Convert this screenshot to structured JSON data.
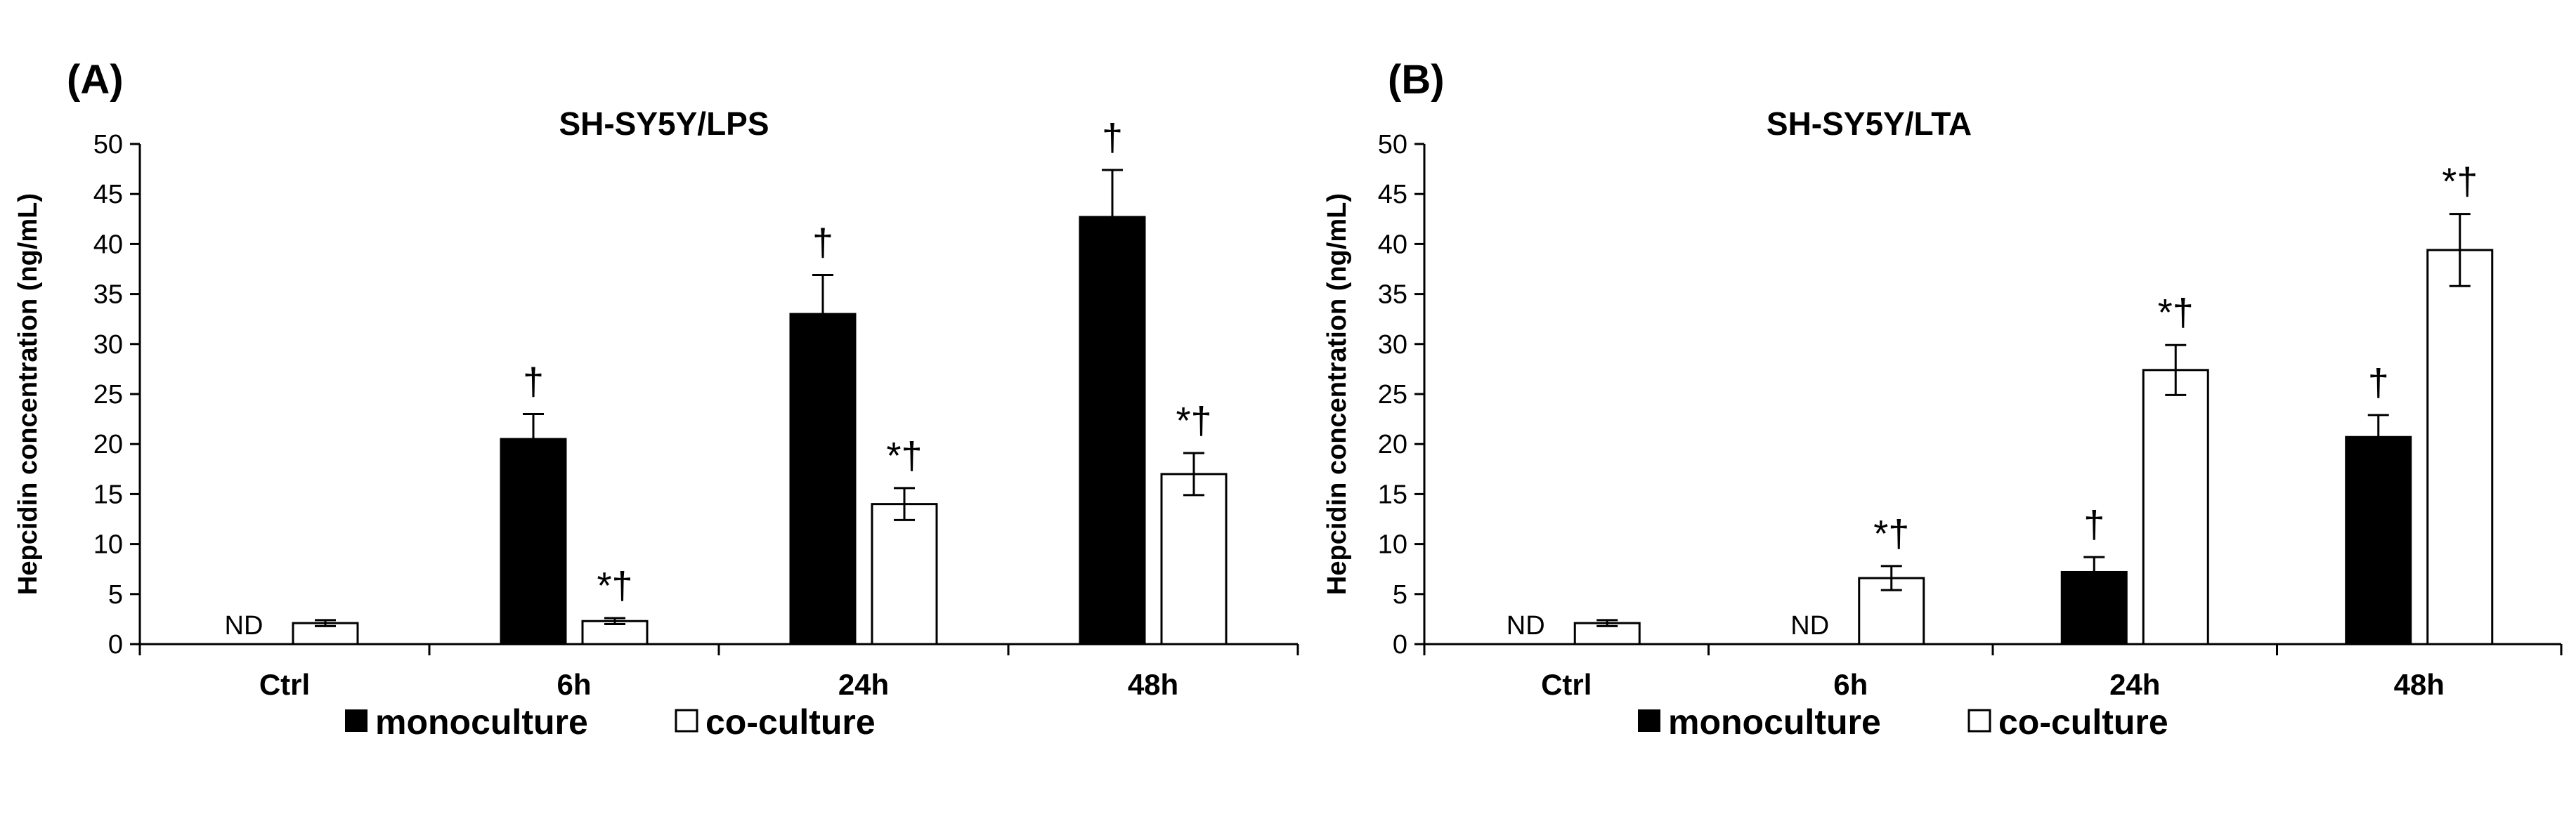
{
  "panels": [
    {
      "panel_label": "(A)",
      "legend": {
        "monoculture": "monoculture",
        "coculture": "co-culture"
      }
    },
    {
      "panel_label": "(B)",
      "legend": {
        "monoculture": "monoculture",
        "coculture": "co-culture"
      }
    }
  ],
  "chart_data": [
    {
      "type": "bar",
      "title": "SH-SY5Y/LPS",
      "ylabel": "Hepcidin concentration (ng/mL)",
      "xlabel": "",
      "ylim": [
        0,
        50
      ],
      "yticks": [
        0,
        5,
        10,
        15,
        20,
        25,
        30,
        35,
        40,
        45,
        50
      ],
      "categories": [
        "Ctrl",
        "6h",
        "24h",
        "48h"
      ],
      "legend_position": "bottom",
      "grid": false,
      "series": [
        {
          "name": "monoculture",
          "color": "#000000",
          "values": [
            0,
            20.5,
            33.0,
            42.7
          ],
          "errors": [
            0,
            2.5,
            3.9,
            4.7
          ],
          "annotations": [
            "ND",
            "†",
            "†",
            "†"
          ]
        },
        {
          "name": "co-culture",
          "color": "#ffffff",
          "values": [
            2.1,
            2.3,
            14.0,
            17.0
          ],
          "errors": [
            0.3,
            0.3,
            1.6,
            2.1
          ],
          "annotations": [
            "",
            "*†",
            "*†",
            "*†"
          ]
        }
      ]
    },
    {
      "type": "bar",
      "title": "SH-SY5Y/LTA",
      "ylabel": "Hepcidin concentration (ng/mL)",
      "xlabel": "",
      "ylim": [
        0,
        50
      ],
      "yticks": [
        0,
        5,
        10,
        15,
        20,
        25,
        30,
        35,
        40,
        45,
        50
      ],
      "categories": [
        "Ctrl",
        "6h",
        "24h",
        "48h"
      ],
      "legend_position": "bottom",
      "grid": false,
      "series": [
        {
          "name": "monoculture",
          "color": "#000000",
          "values": [
            0,
            0,
            7.2,
            20.7
          ],
          "errors": [
            0,
            0,
            1.5,
            2.2
          ],
          "annotations": [
            "ND",
            "ND",
            "†",
            "†"
          ]
        },
        {
          "name": "co-culture",
          "color": "#ffffff",
          "values": [
            2.1,
            6.6,
            27.4,
            39.4
          ],
          "errors": [
            0.3,
            1.2,
            2.5,
            3.6
          ],
          "annotations": [
            "",
            "*†",
            "*†",
            "*†"
          ]
        }
      ]
    }
  ]
}
